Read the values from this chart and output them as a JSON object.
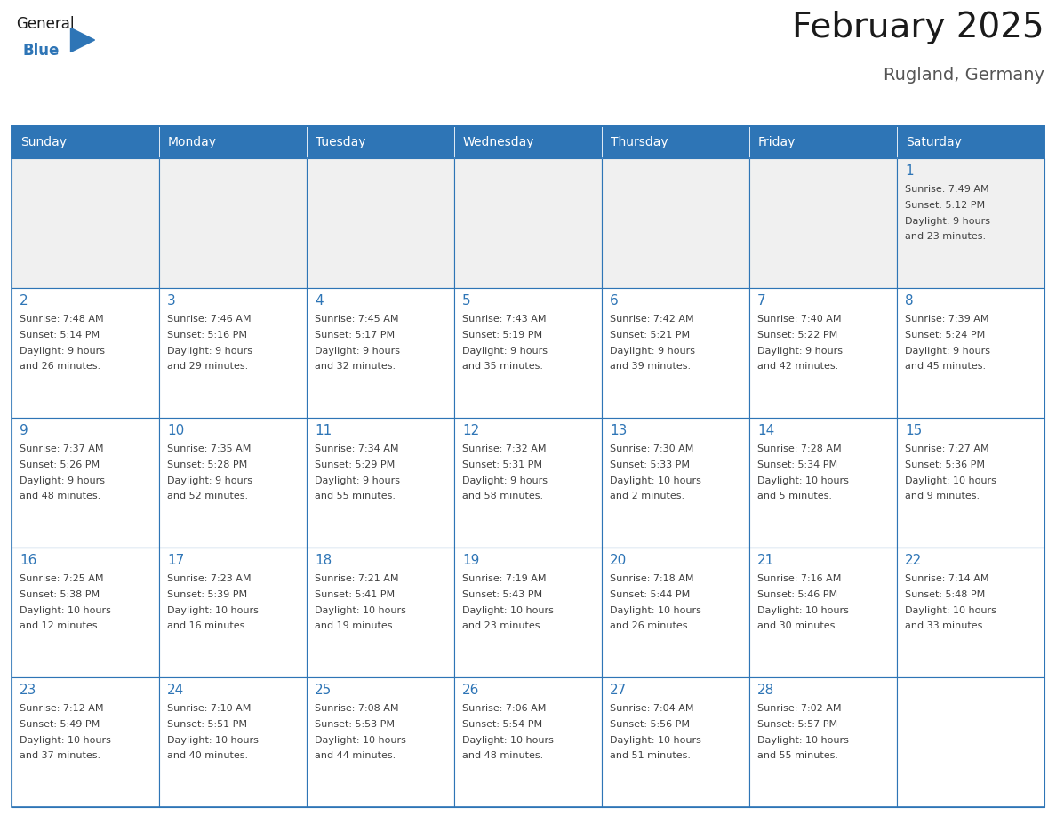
{
  "title": "February 2025",
  "subtitle": "Rugland, Germany",
  "days_of_week": [
    "Sunday",
    "Monday",
    "Tuesday",
    "Wednesday",
    "Thursday",
    "Friday",
    "Saturday"
  ],
  "header_bg": "#2E75B6",
  "header_text": "#FFFFFF",
  "cell_bg": "#FFFFFF",
  "cell_row1_bg": "#F0F0F0",
  "border_color": "#2E75B6",
  "day_number_color": "#2E75B6",
  "info_text_color": "#404040",
  "title_color": "#1a1a1a",
  "subtitle_color": "#555555",
  "logo_general_color": "#1a1a1a",
  "logo_blue_color": "#2E75B6",
  "weeks": [
    [
      null,
      null,
      null,
      null,
      null,
      null,
      1
    ],
    [
      2,
      3,
      4,
      5,
      6,
      7,
      8
    ],
    [
      9,
      10,
      11,
      12,
      13,
      14,
      15
    ],
    [
      16,
      17,
      18,
      19,
      20,
      21,
      22
    ],
    [
      23,
      24,
      25,
      26,
      27,
      28,
      null
    ]
  ],
  "day_data": {
    "1": {
      "sunrise": "7:49 AM",
      "sunset": "5:12 PM",
      "daylight_line1": "Daylight: 9 hours",
      "daylight_line2": "and 23 minutes."
    },
    "2": {
      "sunrise": "7:48 AM",
      "sunset": "5:14 PM",
      "daylight_line1": "Daylight: 9 hours",
      "daylight_line2": "and 26 minutes."
    },
    "3": {
      "sunrise": "7:46 AM",
      "sunset": "5:16 PM",
      "daylight_line1": "Daylight: 9 hours",
      "daylight_line2": "and 29 minutes."
    },
    "4": {
      "sunrise": "7:45 AM",
      "sunset": "5:17 PM",
      "daylight_line1": "Daylight: 9 hours",
      "daylight_line2": "and 32 minutes."
    },
    "5": {
      "sunrise": "7:43 AM",
      "sunset": "5:19 PM",
      "daylight_line1": "Daylight: 9 hours",
      "daylight_line2": "and 35 minutes."
    },
    "6": {
      "sunrise": "7:42 AM",
      "sunset": "5:21 PM",
      "daylight_line1": "Daylight: 9 hours",
      "daylight_line2": "and 39 minutes."
    },
    "7": {
      "sunrise": "7:40 AM",
      "sunset": "5:22 PM",
      "daylight_line1": "Daylight: 9 hours",
      "daylight_line2": "and 42 minutes."
    },
    "8": {
      "sunrise": "7:39 AM",
      "sunset": "5:24 PM",
      "daylight_line1": "Daylight: 9 hours",
      "daylight_line2": "and 45 minutes."
    },
    "9": {
      "sunrise": "7:37 AM",
      "sunset": "5:26 PM",
      "daylight_line1": "Daylight: 9 hours",
      "daylight_line2": "and 48 minutes."
    },
    "10": {
      "sunrise": "7:35 AM",
      "sunset": "5:28 PM",
      "daylight_line1": "Daylight: 9 hours",
      "daylight_line2": "and 52 minutes."
    },
    "11": {
      "sunrise": "7:34 AM",
      "sunset": "5:29 PM",
      "daylight_line1": "Daylight: 9 hours",
      "daylight_line2": "and 55 minutes."
    },
    "12": {
      "sunrise": "7:32 AM",
      "sunset": "5:31 PM",
      "daylight_line1": "Daylight: 9 hours",
      "daylight_line2": "and 58 minutes."
    },
    "13": {
      "sunrise": "7:30 AM",
      "sunset": "5:33 PM",
      "daylight_line1": "Daylight: 10 hours",
      "daylight_line2": "and 2 minutes."
    },
    "14": {
      "sunrise": "7:28 AM",
      "sunset": "5:34 PM",
      "daylight_line1": "Daylight: 10 hours",
      "daylight_line2": "and 5 minutes."
    },
    "15": {
      "sunrise": "7:27 AM",
      "sunset": "5:36 PM",
      "daylight_line1": "Daylight: 10 hours",
      "daylight_line2": "and 9 minutes."
    },
    "16": {
      "sunrise": "7:25 AM",
      "sunset": "5:38 PM",
      "daylight_line1": "Daylight: 10 hours",
      "daylight_line2": "and 12 minutes."
    },
    "17": {
      "sunrise": "7:23 AM",
      "sunset": "5:39 PM",
      "daylight_line1": "Daylight: 10 hours",
      "daylight_line2": "and 16 minutes."
    },
    "18": {
      "sunrise": "7:21 AM",
      "sunset": "5:41 PM",
      "daylight_line1": "Daylight: 10 hours",
      "daylight_line2": "and 19 minutes."
    },
    "19": {
      "sunrise": "7:19 AM",
      "sunset": "5:43 PM",
      "daylight_line1": "Daylight: 10 hours",
      "daylight_line2": "and 23 minutes."
    },
    "20": {
      "sunrise": "7:18 AM",
      "sunset": "5:44 PM",
      "daylight_line1": "Daylight: 10 hours",
      "daylight_line2": "and 26 minutes."
    },
    "21": {
      "sunrise": "7:16 AM",
      "sunset": "5:46 PM",
      "daylight_line1": "Daylight: 10 hours",
      "daylight_line2": "and 30 minutes."
    },
    "22": {
      "sunrise": "7:14 AM",
      "sunset": "5:48 PM",
      "daylight_line1": "Daylight: 10 hours",
      "daylight_line2": "and 33 minutes."
    },
    "23": {
      "sunrise": "7:12 AM",
      "sunset": "5:49 PM",
      "daylight_line1": "Daylight: 10 hours",
      "daylight_line2": "and 37 minutes."
    },
    "24": {
      "sunrise": "7:10 AM",
      "sunset": "5:51 PM",
      "daylight_line1": "Daylight: 10 hours",
      "daylight_line2": "and 40 minutes."
    },
    "25": {
      "sunrise": "7:08 AM",
      "sunset": "5:53 PM",
      "daylight_line1": "Daylight: 10 hours",
      "daylight_line2": "and 44 minutes."
    },
    "26": {
      "sunrise": "7:06 AM",
      "sunset": "5:54 PM",
      "daylight_line1": "Daylight: 10 hours",
      "daylight_line2": "and 48 minutes."
    },
    "27": {
      "sunrise": "7:04 AM",
      "sunset": "5:56 PM",
      "daylight_line1": "Daylight: 10 hours",
      "daylight_line2": "and 51 minutes."
    },
    "28": {
      "sunrise": "7:02 AM",
      "sunset": "5:57 PM",
      "daylight_line1": "Daylight: 10 hours",
      "daylight_line2": "and 55 minutes."
    }
  }
}
